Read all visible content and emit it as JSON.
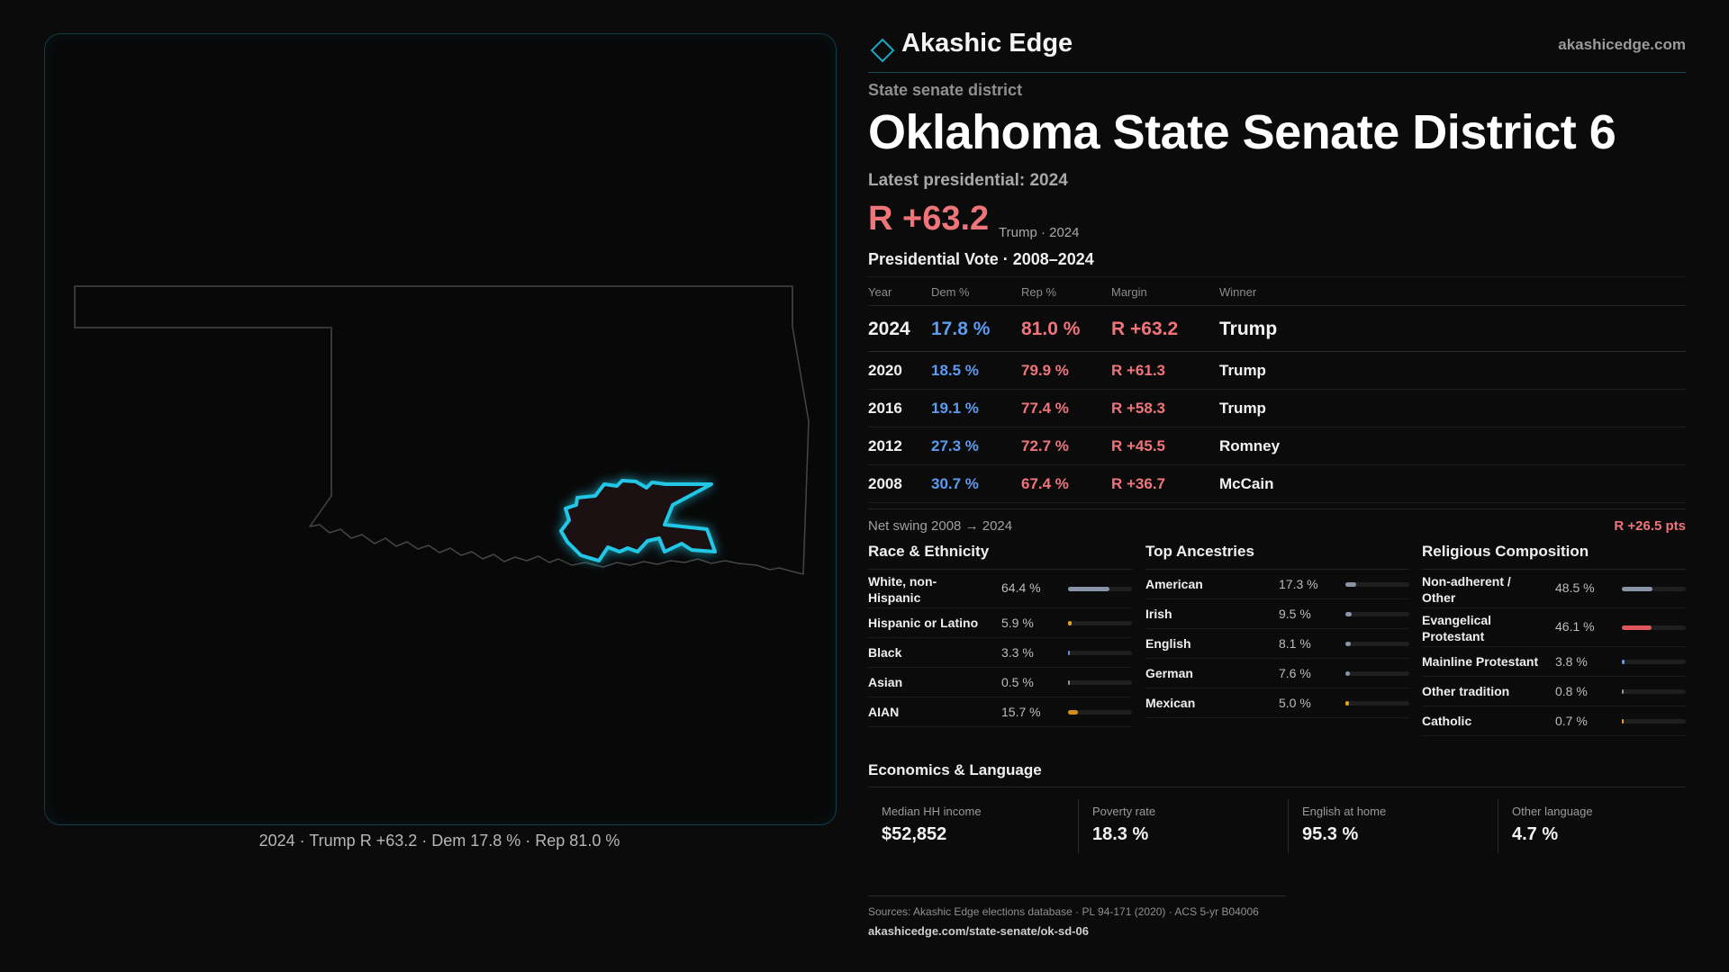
{
  "map": {
    "caption": "2024 · Trump R +63.2 · Dem 17.8 % · Rep 81.0 %",
    "state_outline_color": "#4a4a4a",
    "district_color": "#22c7e6"
  },
  "brand": {
    "name": "Akashic Edge",
    "url": "akashicedge.com",
    "logo_icon": "diamond-icon",
    "accent": "#1aa7c2"
  },
  "header": {
    "kicker": "State senate district",
    "title": "Oklahoma State Senate District 6",
    "latest_label": "Latest presidential: 2024",
    "big_margin": "R +63.2",
    "big_sub": "Trump · 2024"
  },
  "presidential": {
    "title": "Presidential Vote · 2008–2024",
    "columns": [
      "Year",
      "Dem %",
      "Rep %",
      "Margin",
      "Winner"
    ],
    "rows": [
      {
        "year": "2024",
        "dem": "17.8 %",
        "rep": "81.0 %",
        "margin": "R +63.2",
        "winner": "Trump"
      },
      {
        "year": "2020",
        "dem": "18.5 %",
        "rep": "79.9 %",
        "margin": "R +61.3",
        "winner": "Trump"
      },
      {
        "year": "2016",
        "dem": "19.1 %",
        "rep": "77.4 %",
        "margin": "R +58.3",
        "winner": "Trump"
      },
      {
        "year": "2012",
        "dem": "27.3 %",
        "rep": "72.7 %",
        "margin": "R +45.5",
        "winner": "Romney"
      },
      {
        "year": "2008",
        "dem": "30.7 %",
        "rep": "67.4 %",
        "margin": "R +36.7",
        "winner": "McCain"
      }
    ],
    "swing_label": "Net swing 2008 → 2024",
    "swing_value": "R +26.5 pts",
    "dem_color": "#5b9bf0",
    "rep_color": "#f0757a"
  },
  "race": {
    "title": "Race & Ethnicity",
    "items": [
      {
        "label": "White, non-Hispanic",
        "pct": "64.4 %",
        "value": 64.4,
        "color": "#8a94a8"
      },
      {
        "label": "Hispanic or Latino",
        "pct": "5.9 %",
        "value": 5.9,
        "color": "#e0a020"
      },
      {
        "label": "Black",
        "pct": "3.3 %",
        "value": 3.3,
        "color": "#6a8ae0"
      },
      {
        "label": "Asian",
        "pct": "0.5 %",
        "value": 0.5,
        "color": "#8a94a8"
      },
      {
        "label": "AIAN",
        "pct": "15.7 %",
        "value": 15.7,
        "color": "#d0901a"
      }
    ]
  },
  "ancestry": {
    "title": "Top Ancestries",
    "items": [
      {
        "label": "American",
        "pct": "17.3 %",
        "value": 17.3,
        "color": "#8a94a8"
      },
      {
        "label": "Irish",
        "pct": "9.5 %",
        "value": 9.5,
        "color": "#8a94a8"
      },
      {
        "label": "English",
        "pct": "8.1 %",
        "value": 8.1,
        "color": "#8a94a8"
      },
      {
        "label": "German",
        "pct": "7.6 %",
        "value": 7.6,
        "color": "#8a94a8"
      },
      {
        "label": "Mexican",
        "pct": "5.0 %",
        "value": 5.0,
        "color": "#e0a020"
      }
    ]
  },
  "religion": {
    "title": "Religious Composition",
    "items": [
      {
        "label": "Non-adherent / Other",
        "pct": "48.5 %",
        "value": 48.5,
        "color": "#8a94a8"
      },
      {
        "label": "Evangelical Protestant",
        "pct": "46.1 %",
        "value": 46.1,
        "color": "#e0585e"
      },
      {
        "label": "Mainline Protestant",
        "pct": "3.8 %",
        "value": 3.8,
        "color": "#5b9bf0"
      },
      {
        "label": "Other tradition",
        "pct": "0.8 %",
        "value": 0.8,
        "color": "#8a94a8"
      },
      {
        "label": "Catholic",
        "pct": "0.7 %",
        "value": 0.7,
        "color": "#e0a020"
      }
    ]
  },
  "economics": {
    "title": "Economics & Language",
    "items": [
      {
        "label": "Median HH income",
        "value": "$52,852"
      },
      {
        "label": "Poverty rate",
        "value": "18.3 %"
      },
      {
        "label": "English at home",
        "value": "95.3 %"
      },
      {
        "label": "Other language",
        "value": "4.7 %"
      }
    ]
  },
  "footer": {
    "sources": "Sources: Akashic Edge elections database · PL 94-171 (2020) · ACS 5-yr B04006",
    "url": "akashicedge.com/state-senate/ok-sd-06"
  }
}
